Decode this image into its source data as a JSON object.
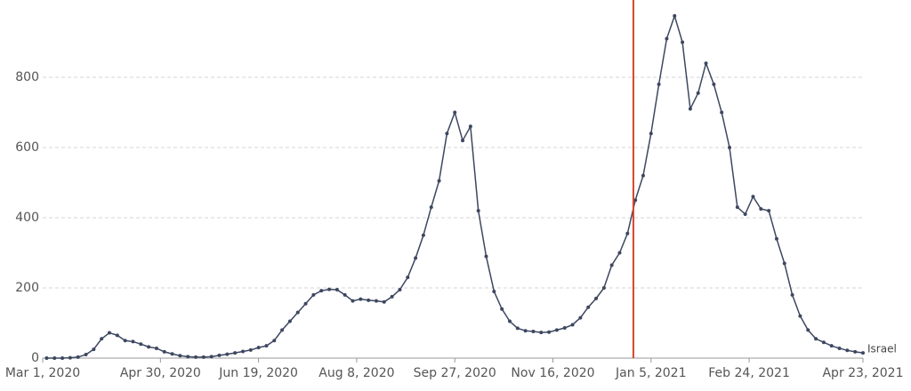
{
  "chart_data": {
    "type": "line",
    "x": [
      "2020-03-03",
      "2020-03-07",
      "2020-03-11",
      "2020-03-15",
      "2020-03-19",
      "2020-03-23",
      "2020-03-27",
      "2020-03-31",
      "2020-04-04",
      "2020-04-08",
      "2020-04-12",
      "2020-04-16",
      "2020-04-20",
      "2020-04-24",
      "2020-04-28",
      "2020-05-02",
      "2020-05-06",
      "2020-05-10",
      "2020-05-14",
      "2020-05-18",
      "2020-05-22",
      "2020-05-26",
      "2020-05-30",
      "2020-06-03",
      "2020-06-07",
      "2020-06-11",
      "2020-06-15",
      "2020-06-19",
      "2020-06-23",
      "2020-06-27",
      "2020-07-01",
      "2020-07-05",
      "2020-07-09",
      "2020-07-13",
      "2020-07-17",
      "2020-07-21",
      "2020-07-25",
      "2020-07-29",
      "2020-08-02",
      "2020-08-06",
      "2020-08-10",
      "2020-08-14",
      "2020-08-18",
      "2020-08-22",
      "2020-08-26",
      "2020-08-30",
      "2020-09-03",
      "2020-09-07",
      "2020-09-11",
      "2020-09-15",
      "2020-09-19",
      "2020-09-23",
      "2020-09-27",
      "2020-10-01",
      "2020-10-05",
      "2020-10-09",
      "2020-10-13",
      "2020-10-17",
      "2020-10-21",
      "2020-10-25",
      "2020-10-29",
      "2020-11-02",
      "2020-11-06",
      "2020-11-10",
      "2020-11-14",
      "2020-11-18",
      "2020-11-22",
      "2020-11-26",
      "2020-11-30",
      "2020-12-04",
      "2020-12-08",
      "2020-12-12",
      "2020-12-16",
      "2020-12-20",
      "2020-12-24",
      "2020-12-28",
      "2021-01-01",
      "2021-01-05",
      "2021-01-09",
      "2021-01-13",
      "2021-01-17",
      "2021-01-21",
      "2021-01-25",
      "2021-01-29",
      "2021-02-02",
      "2021-02-06",
      "2021-02-10",
      "2021-02-14",
      "2021-02-18",
      "2021-02-22",
      "2021-02-26",
      "2021-03-02",
      "2021-03-06",
      "2021-03-10",
      "2021-03-14",
      "2021-03-18",
      "2021-03-22",
      "2021-03-26",
      "2021-03-30",
      "2021-04-03",
      "2021-04-07",
      "2021-04-11",
      "2021-04-15",
      "2021-04-19",
      "2021-04-23"
    ],
    "series": [
      {
        "name": "Israel",
        "color": "#3d4760",
        "values": [
          0,
          0,
          0,
          1,
          3,
          10,
          25,
          55,
          72,
          65,
          50,
          47,
          40,
          32,
          28,
          18,
          12,
          7,
          4,
          3,
          3,
          4,
          8,
          11,
          15,
          19,
          23,
          30,
          35,
          50,
          80,
          105,
          130,
          155,
          180,
          192,
          196,
          195,
          180,
          163,
          168,
          165,
          163,
          160,
          175,
          195,
          230,
          285,
          350,
          430,
          505,
          640,
          700,
          620,
          660,
          420,
          290,
          190,
          140,
          105,
          85,
          78,
          76,
          73,
          74,
          80,
          86,
          95,
          115,
          145,
          170,
          200,
          265,
          300,
          355,
          450,
          520,
          640,
          780,
          910,
          975,
          900,
          710,
          755,
          840,
          780,
          700,
          600,
          430,
          410,
          460,
          425,
          420,
          340,
          270,
          180,
          120,
          80,
          55,
          45,
          35,
          28,
          22,
          18,
          15
        ]
      }
    ],
    "xlim": [
      "2020-03-01",
      "2021-04-23"
    ],
    "xticks": [
      {
        "value": "2020-03-01",
        "label": "Mar 1, 2020"
      },
      {
        "value": "2020-04-30",
        "label": "Apr 30, 2020"
      },
      {
        "value": "2020-06-19",
        "label": "Jun 19, 2020"
      },
      {
        "value": "2020-08-08",
        "label": "Aug 8, 2020"
      },
      {
        "value": "2020-09-27",
        "label": "Sep 27, 2020"
      },
      {
        "value": "2020-11-16",
        "label": "Nov 16, 2020"
      },
      {
        "value": "2021-01-05",
        "label": "Jan 5, 2021"
      },
      {
        "value": "2021-02-24",
        "label": "Feb 24, 2021"
      },
      {
        "value": "2021-04-23",
        "label": "Apr 23, 2021"
      }
    ],
    "ylim": [
      0,
      1000
    ],
    "yticks": [
      0,
      200,
      400,
      600,
      800
    ],
    "grid": true,
    "marker_line": {
      "x": "2020-12-27",
      "color": "#d4452a"
    }
  }
}
